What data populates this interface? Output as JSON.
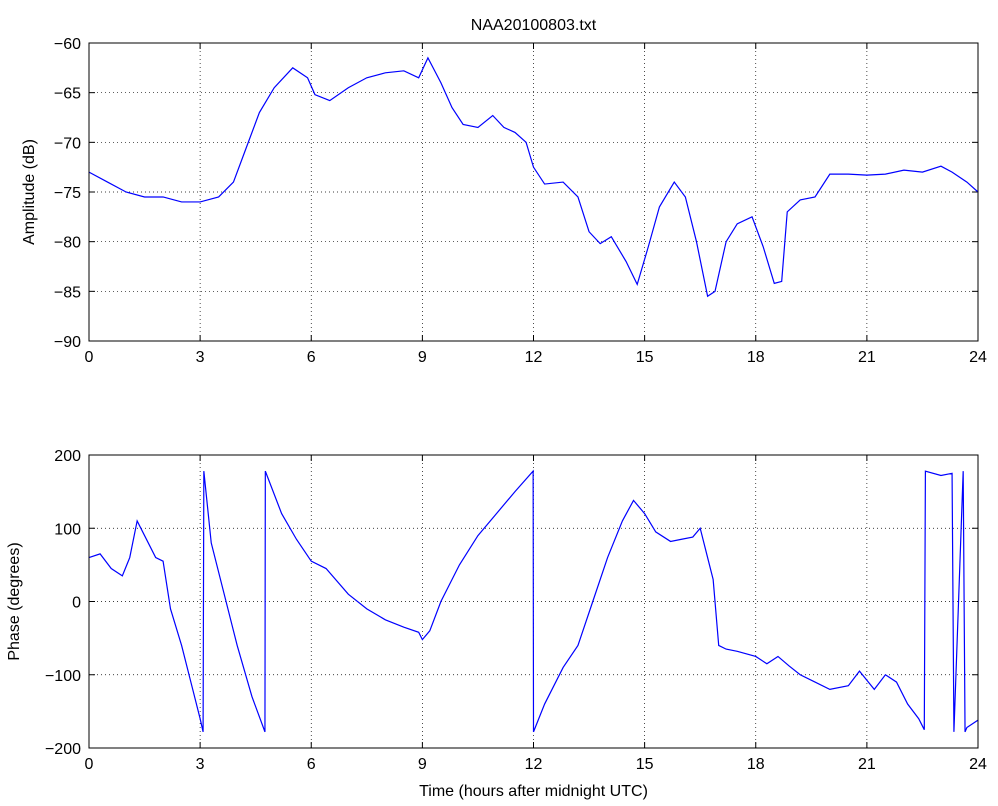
{
  "chart_data": [
    {
      "type": "line",
      "title": "NAA20100803.txt",
      "xlabel": "",
      "ylabel": "Amplitude (dB)",
      "xlim": [
        0,
        24
      ],
      "ylim": [
        -90,
        -60
      ],
      "xticks": [
        0,
        3,
        6,
        9,
        12,
        15,
        18,
        21,
        24
      ],
      "yticks": [
        -90,
        -85,
        -80,
        -75,
        -70,
        -65,
        -60
      ],
      "xtick_labels": [
        "0",
        "3",
        "6",
        "9",
        "12",
        "15",
        "18",
        "21",
        "24"
      ],
      "ytick_labels": [
        "−90",
        "−85",
        "−80",
        "−75",
        "−70",
        "−65",
        "−60"
      ],
      "grid": true,
      "color": "#0000ff",
      "series": [
        {
          "x": [
            0,
            0.5,
            1.0,
            1.5,
            2.0,
            2.5,
            3.0,
            3.5,
            3.9,
            4.2,
            4.6,
            5.0,
            5.5,
            5.9,
            6.1,
            6.5,
            7.0,
            7.5,
            8.0,
            8.5,
            8.9,
            9.15,
            9.5,
            9.8,
            10.1,
            10.5,
            10.9,
            11.2,
            11.5,
            11.8,
            12.0,
            12.3,
            12.8,
            13.2,
            13.5,
            13.8,
            14.1,
            14.5,
            14.8,
            15.1,
            15.4,
            15.8,
            16.1,
            16.4,
            16.7,
            16.9,
            17.2,
            17.5,
            17.9,
            18.2,
            18.5,
            18.7,
            18.85,
            19.2,
            19.6,
            20.0,
            20.5,
            21.0,
            21.5,
            22.0,
            22.5,
            23.0,
            23.3,
            23.7,
            24.0
          ],
          "y": [
            -73,
            -74,
            -75,
            -75.5,
            -75.5,
            -76,
            -76,
            -75.5,
            -74,
            -71,
            -67,
            -64.5,
            -62.5,
            -63.5,
            -65.2,
            -65.8,
            -64.5,
            -63.5,
            -63,
            -62.8,
            -63.5,
            -61.5,
            -64,
            -66.5,
            -68.2,
            -68.5,
            -67.3,
            -68.5,
            -69,
            -70,
            -72.5,
            -74.2,
            -74,
            -75.5,
            -79,
            -80.2,
            -79.5,
            -82,
            -84.3,
            -80.5,
            -76.5,
            -74,
            -75.5,
            -80,
            -85.5,
            -85,
            -80,
            -78.2,
            -77.5,
            -80.5,
            -84.2,
            -84,
            -77,
            -75.8,
            -75.5,
            -73.2,
            -73.2,
            -73.3,
            -73.2,
            -72.8,
            -73,
            -72.4,
            -73,
            -74,
            -75
          ]
        }
      ]
    },
    {
      "type": "line",
      "title": "",
      "xlabel": "Time (hours after midnight UTC)",
      "ylabel": "Phase (degrees)",
      "xlim": [
        0,
        24
      ],
      "ylim": [
        -200,
        200
      ],
      "xticks": [
        0,
        3,
        6,
        9,
        12,
        15,
        18,
        21,
        24
      ],
      "yticks": [
        -200,
        -100,
        0,
        100,
        200
      ],
      "xtick_labels": [
        "0",
        "3",
        "6",
        "9",
        "12",
        "15",
        "18",
        "21",
        "24"
      ],
      "ytick_labels": [
        "−200",
        "−100",
        "0",
        "100",
        "200"
      ],
      "grid": true,
      "color": "#0000ff",
      "series": [
        {
          "x": [
            0,
            0.3,
            0.6,
            0.9,
            1.1,
            1.3,
            1.5,
            1.8,
            2.0,
            2.2,
            2.5,
            2.8,
            3.0,
            3.08,
            3.1,
            3.3,
            3.6,
            4.0,
            4.4,
            4.75,
            4.76,
            5.2,
            5.6,
            6.0,
            6.4,
            7.0,
            7.5,
            8.0,
            8.5,
            8.9,
            9.0,
            9.2,
            9.5,
            10.0,
            10.5,
            11.0,
            11.5,
            11.99,
            12.0,
            12.3,
            12.8,
            13.2,
            13.6,
            14.0,
            14.4,
            14.7,
            15.0,
            15.3,
            15.7,
            16.0,
            16.3,
            16.5,
            16.7,
            16.85,
            17.0,
            17.2,
            17.5,
            18.0,
            18.3,
            18.6,
            18.9,
            19.2,
            19.6,
            20.0,
            20.5,
            20.8,
            21.2,
            21.5,
            21.8,
            22.1,
            22.4,
            22.55,
            22.58,
            23.0,
            23.3,
            23.35,
            23.6,
            23.65,
            23.7,
            24.0
          ],
          "y": [
            60,
            65,
            45,
            35,
            60,
            110,
            90,
            60,
            55,
            -10,
            -60,
            -120,
            -160,
            -178,
            178,
            80,
            20,
            -60,
            -130,
            -178,
            178,
            120,
            85,
            55,
            45,
            10,
            -10,
            -25,
            -35,
            -42,
            -52,
            -40,
            0,
            50,
            90,
            120,
            150,
            178,
            -178,
            -140,
            -90,
            -60,
            0,
            60,
            110,
            138,
            120,
            95,
            82,
            85,
            88,
            100,
            60,
            30,
            -60,
            -65,
            -68,
            -75,
            -85,
            -75,
            -88,
            -100,
            -110,
            -120,
            -115,
            -95,
            -120,
            -100,
            -110,
            -140,
            -160,
            -175,
            178,
            172,
            175,
            -178,
            178,
            -178,
            -172,
            -162
          ]
        }
      ]
    }
  ]
}
